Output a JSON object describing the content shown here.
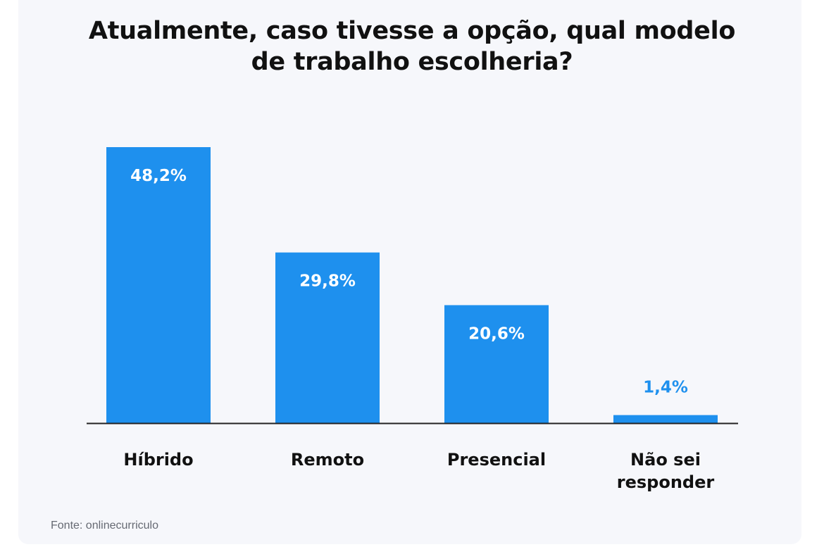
{
  "chart_data": {
    "type": "bar",
    "title_lines": [
      "Atualmente, caso tivesse a opção, qual modelo",
      "de trabalho escolheria?"
    ],
    "categories": [
      [
        "Híbrido"
      ],
      [
        "Remoto"
      ],
      [
        "Presencial"
      ],
      [
        "Não sei",
        "responder"
      ]
    ],
    "values": [
      48.2,
      29.8,
      20.6,
      1.4
    ],
    "value_labels": [
      "48,2%",
      "29,8%",
      "20,6%",
      "1,4%"
    ],
    "ylim": [
      0,
      48.2
    ],
    "grid": false,
    "legend": "none",
    "bar_color": "#1e90ee",
    "inside_label_color": "#ffffff",
    "outside_label_color": "#1e90ee",
    "category_label_color": "#111111",
    "axis_color": "#222222"
  },
  "source_text": "Fonte: onlinecurriculo"
}
